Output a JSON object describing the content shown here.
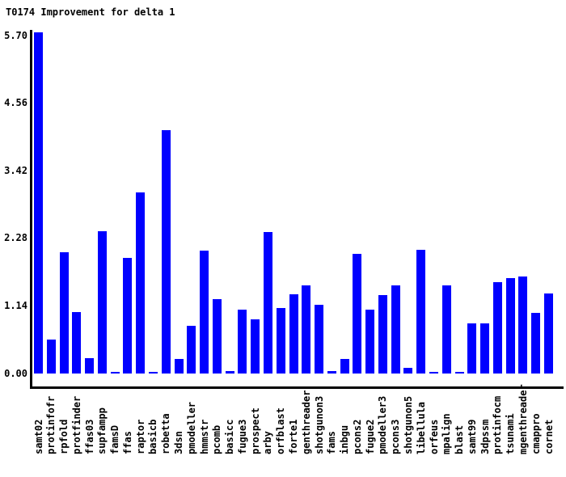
{
  "window": {
    "background": "#ffffff"
  },
  "chart_data": {
    "type": "bar",
    "title": "T0174 Improvement for delta 1",
    "xlabel": "",
    "ylabel": "",
    "ylim": [
      0,
      5.7
    ],
    "grid": false,
    "legend": false,
    "bar_color": "#0000ff",
    "axis_color": "#000000",
    "text_color": "#000000",
    "y_tick_labels": [
      "0.00",
      "1.14",
      "2.28",
      "3.42",
      "4.56",
      "5.70"
    ],
    "y_tick_values": [
      0,
      1.14,
      2.28,
      3.42,
      4.56,
      5.7
    ],
    "categories": [
      "samt02",
      "protinfofr",
      "rpfold",
      "protfinder",
      "ffas03",
      "supfampp",
      "famsD",
      "ffas",
      "raptor",
      "basicb",
      "robetta",
      "3dsn",
      "pmodeller",
      "hmmstr",
      "pcomb",
      "basicc",
      "fugue3",
      "prospect",
      "arby",
      "orfblast",
      "forte1",
      "genthreader",
      "shotgunon3",
      "fams",
      "inbgu",
      "pcons2",
      "fugue2",
      "pmodeller3",
      "pcons3",
      "shotgunon5",
      "libellula",
      "orfeus",
      "mpalign",
      "blast",
      "samt99",
      "3dpssm",
      "protinfocm",
      "tsunami",
      "mgenthreader",
      "cmappro",
      "cornet"
    ],
    "values": [
      5.75,
      0.57,
      2.05,
      1.04,
      0.26,
      2.4,
      0.03,
      1.95,
      3.05,
      0.03,
      4.1,
      0.24,
      0.8,
      2.07,
      1.26,
      0.04,
      1.08,
      0.92,
      2.39,
      1.1,
      1.33,
      1.49,
      1.16,
      0.04,
      0.25,
      2.02,
      1.08,
      1.32,
      1.49,
      0.09,
      2.09,
      0.03,
      1.49,
      0.02,
      0.85,
      0.85,
      1.54,
      1.61,
      1.63,
      1.02,
      1.35
    ]
  }
}
